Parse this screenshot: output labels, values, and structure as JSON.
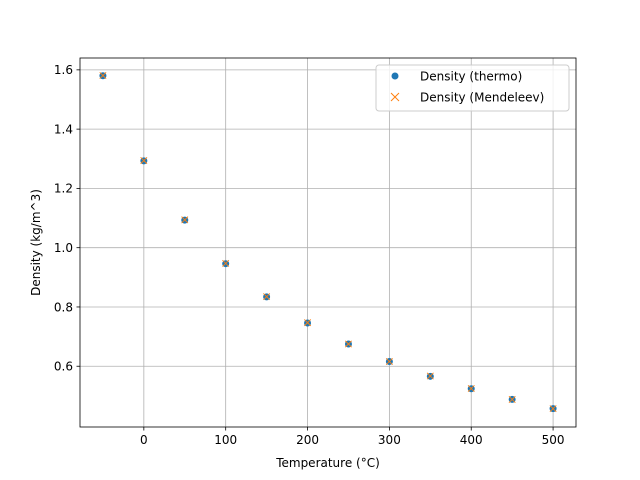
{
  "chart_data": {
    "type": "scatter",
    "title": "",
    "xlabel": "Temperature (°C)",
    "ylabel": "Density (kg/m^3)",
    "xlim": [
      -78,
      528
    ],
    "ylim": [
      0.395,
      1.64
    ],
    "grid": true,
    "legend_position": "top-right",
    "x": [
      -50,
      0,
      50,
      100,
      150,
      200,
      250,
      300,
      350,
      400,
      450,
      500
    ],
    "xticks": [
      0,
      100,
      200,
      300,
      400,
      500
    ],
    "xtick_labels": [
      "0",
      "100",
      "200",
      "300",
      "400",
      "500"
    ],
    "yticks": [
      0.6,
      0.8,
      1.0,
      1.2,
      1.4,
      1.6
    ],
    "ytick_labels": [
      "0.6",
      "0.8",
      "1.0",
      "1.2",
      "1.4",
      "1.6"
    ],
    "series": [
      {
        "name": "Density (thermo)",
        "marker": "circle",
        "color": "#1f77b4",
        "values": [
          1.58,
          1.293,
          1.093,
          0.946,
          0.834,
          0.746,
          0.675,
          0.616,
          0.566,
          0.524,
          0.488,
          0.457
        ]
      },
      {
        "name": "Density (Mendeleev)",
        "marker": "x",
        "color": "#ff7f0e",
        "values": [
          1.581,
          1.294,
          1.094,
          0.947,
          0.835,
          0.747,
          0.675,
          0.616,
          0.567,
          0.525,
          0.488,
          0.457
        ]
      }
    ]
  }
}
